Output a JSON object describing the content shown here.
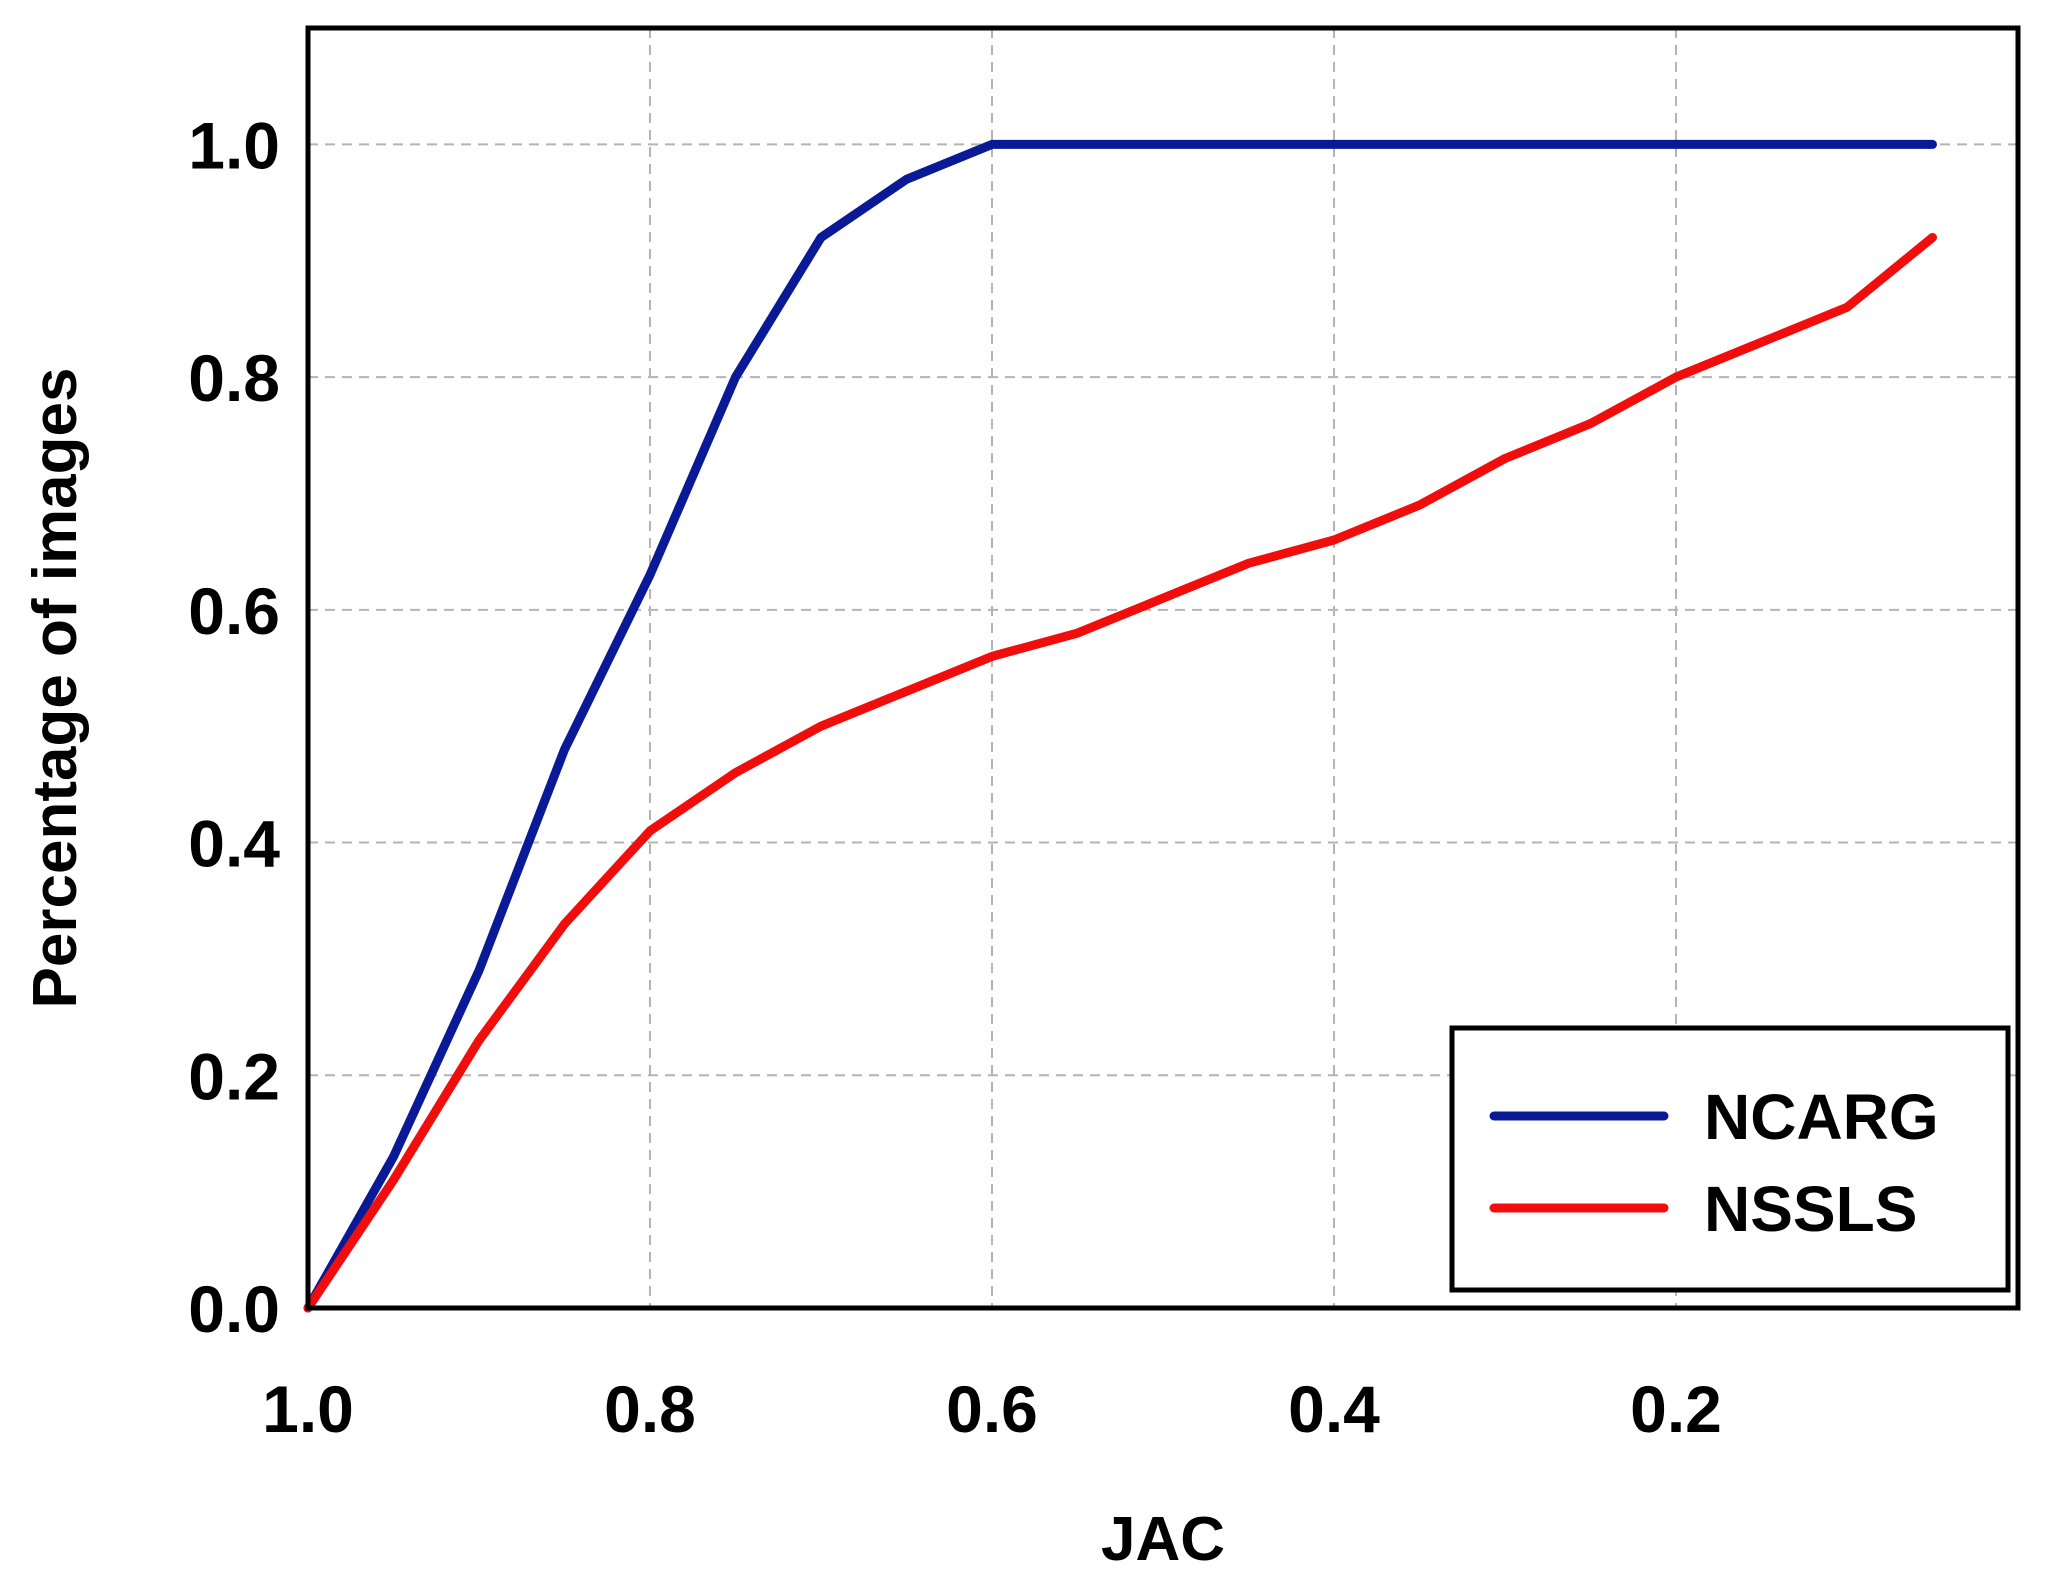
{
  "chart_data": {
    "type": "line",
    "title": "",
    "xlabel": "JAC",
    "ylabel": "Percentage of images",
    "xlim": [
      1.0,
      0.0
    ],
    "ylim": [
      0.0,
      1.1
    ],
    "x_reversed": true,
    "grid": true,
    "legend_position": "bottom-right",
    "x_ticks": [
      {
        "value": 1.0,
        "label": "1.0"
      },
      {
        "value": 0.8,
        "label": "0.8"
      },
      {
        "value": 0.6,
        "label": "0.6"
      },
      {
        "value": 0.4,
        "label": "0.4"
      },
      {
        "value": 0.2,
        "label": "0.2"
      }
    ],
    "y_ticks": [
      {
        "value": 0.0,
        "label": "0.0"
      },
      {
        "value": 0.2,
        "label": "0.2"
      },
      {
        "value": 0.4,
        "label": "0.4"
      },
      {
        "value": 0.6,
        "label": "0.6"
      },
      {
        "value": 0.8,
        "label": "0.8"
      },
      {
        "value": 1.0,
        "label": "1.0"
      }
    ],
    "series": [
      {
        "name": "NCARG",
        "color": "#0a1a96",
        "x": [
          1.0,
          0.95,
          0.9,
          0.85,
          0.8,
          0.75,
          0.7,
          0.65,
          0.6,
          0.55,
          0.5,
          0.45,
          0.4,
          0.35,
          0.3,
          0.25,
          0.2,
          0.15,
          0.1,
          0.05
        ],
        "y": [
          0.0,
          0.13,
          0.29,
          0.48,
          0.63,
          0.8,
          0.92,
          0.97,
          1.0,
          1.0,
          1.0,
          1.0,
          1.0,
          1.0,
          1.0,
          1.0,
          1.0,
          1.0,
          1.0,
          1.0
        ]
      },
      {
        "name": "NSSLS",
        "color": "#f20d0d",
        "x": [
          1.0,
          0.95,
          0.9,
          0.85,
          0.8,
          0.75,
          0.7,
          0.65,
          0.6,
          0.55,
          0.5,
          0.45,
          0.4,
          0.35,
          0.3,
          0.25,
          0.2,
          0.15,
          0.1,
          0.05
        ],
        "y": [
          0.0,
          0.11,
          0.23,
          0.33,
          0.41,
          0.46,
          0.5,
          0.53,
          0.56,
          0.58,
          0.61,
          0.64,
          0.66,
          0.69,
          0.73,
          0.76,
          0.8,
          0.83,
          0.86,
          0.92
        ]
      }
    ]
  }
}
